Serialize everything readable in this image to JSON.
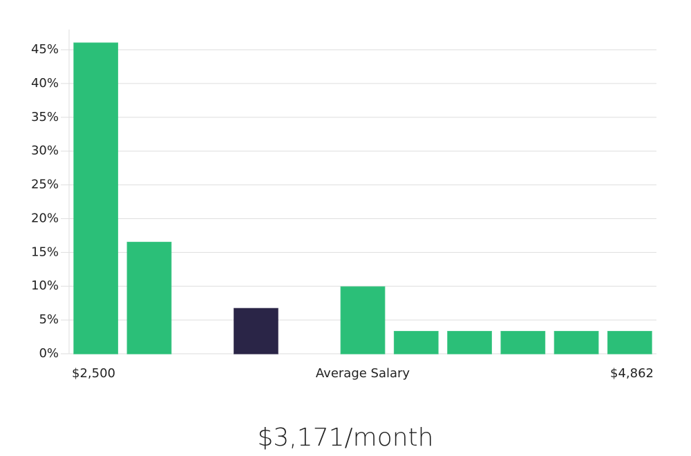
{
  "chart_data": {
    "type": "bar",
    "title": "$3,171/month",
    "x_label": "Average Salary",
    "categories": [
      "$2,500",
      null,
      null,
      null,
      null,
      null,
      null,
      null,
      null,
      null,
      "$4,862"
    ],
    "values": [
      46,
      16.5,
      0,
      6.7,
      0,
      9.9,
      3.3,
      3.3,
      3.3,
      3.3,
      3.3
    ],
    "colors": [
      "#2bbf78",
      "#2bbf78",
      "#2bbf78",
      "#2a2547",
      "#2bbf78",
      "#2bbf78",
      "#2bbf78",
      "#2bbf78",
      "#2bbf78",
      "#2bbf78",
      "#2bbf78"
    ],
    "ylim": [
      0,
      48
    ],
    "yticks": [
      {
        "value": 0,
        "label": "0%"
      },
      {
        "value": 5,
        "label": "5%"
      },
      {
        "value": 10,
        "label": "10%"
      },
      {
        "value": 15,
        "label": "15%"
      },
      {
        "value": 20,
        "label": "20%"
      },
      {
        "value": 25,
        "label": "25%"
      },
      {
        "value": 30,
        "label": "30%"
      },
      {
        "value": 35,
        "label": "35%"
      },
      {
        "value": 40,
        "label": "40%"
      },
      {
        "value": 45,
        "label": "45%"
      }
    ],
    "grid": true
  }
}
